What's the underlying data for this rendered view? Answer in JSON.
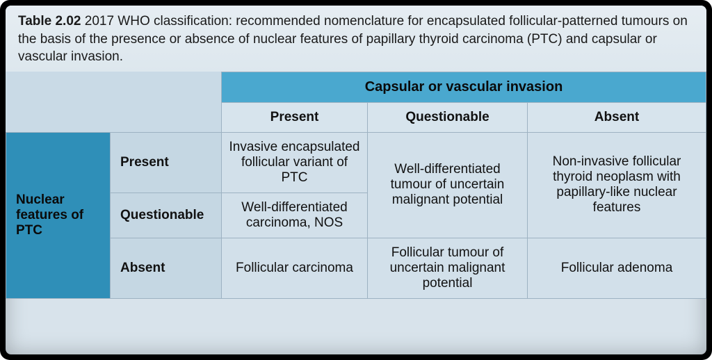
{
  "caption": {
    "label": "Table 2.02",
    "text": "2017 WHO classification: recommended nomenclature for encapsulated follicular-patterned tumours on the basis of the presence or absence of nuclear features of papillary thyroid carcinoma (PTC) and capsular or vascular invasion."
  },
  "table": {
    "col_group_header": "Capsular or vascular invasion",
    "row_group_header": "Nuclear features of PTC",
    "col_sub": [
      "Present",
      "Questionable",
      "Absent"
    ],
    "row_sub": [
      "Present",
      "Questionable",
      "Absent"
    ],
    "cells": {
      "r0c0": "Invasive encapsulated follicular variant of PTC",
      "r0_1_c1": "Well-differentiated tumour of uncertain malignant potential",
      "r0_1_c2": "Non-invasive follicular thyroid neoplasm with papillary-like nuclear features",
      "r1c0": "Well-differentiated carcinoma, NOS",
      "r2c0": "Follicular carcinoma",
      "r2c1": "Follicular tumour of uncertain malignant potential",
      "r2c2": "Follicular adenoma"
    },
    "colors": {
      "page_bg": "#d8e3eb",
      "header_band": "#4aa8cf",
      "row_band": "#2f8fb8",
      "border": "#9db2c2",
      "cell_bg": "#d2e0ea"
    }
  }
}
